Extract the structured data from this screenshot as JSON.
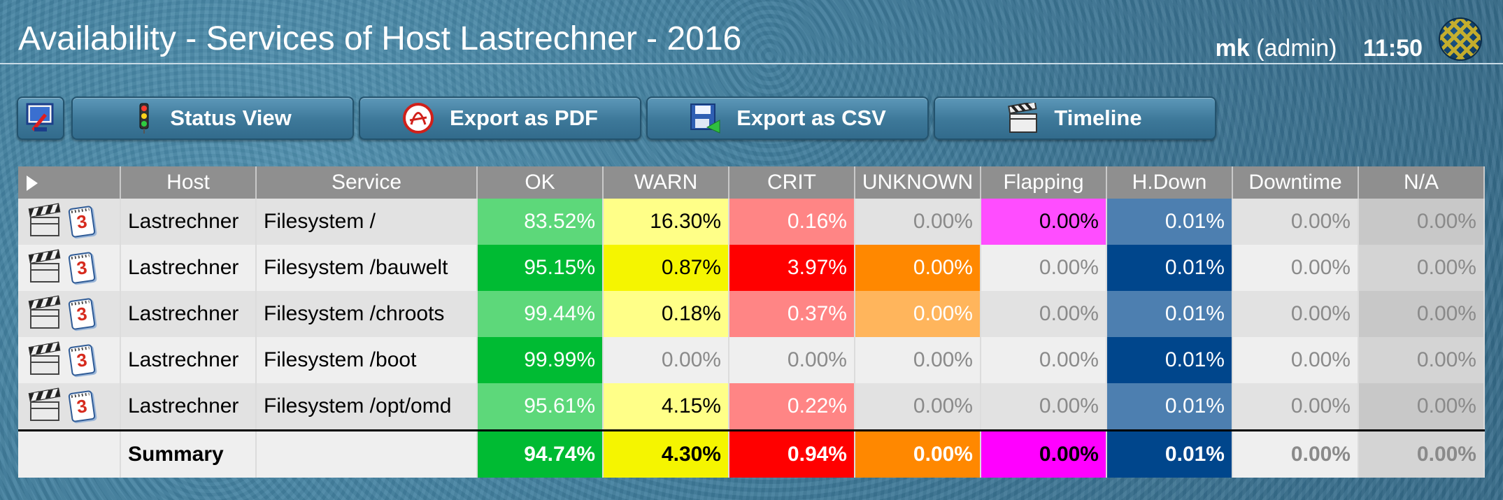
{
  "header": {
    "title": "Availability - Services of Host Lastrechner - 2016",
    "user": "mk",
    "role": "(admin)",
    "time": "11:50",
    "logo_icon": "globe-logo-icon"
  },
  "toolbar": {
    "home_icon": "monitor-home-icon",
    "buttons": [
      {
        "label": "Status View",
        "icon": "traffic-light-icon"
      },
      {
        "label": "Export as PDF",
        "icon": "pdf-icon"
      },
      {
        "label": "Export as CSV",
        "icon": "csv-save-icon"
      },
      {
        "label": "Timeline",
        "icon": "clapperboard-icon"
      }
    ]
  },
  "table": {
    "columns": [
      "Host",
      "Service",
      "OK",
      "WARN",
      "CRIT",
      "UNKNOWN",
      "Flapping",
      "H.Down",
      "Downtime",
      "N/A"
    ],
    "calendar_number": "3",
    "rows": [
      {
        "host": "Lastrechner",
        "service": "Filesystem /",
        "ok": "83.52%",
        "warn": "16.30%",
        "crit": "0.16%",
        "unknown": "0.00%",
        "flapping": "0.00%",
        "hdown": "0.01%",
        "downtime": "0.00%",
        "na": "0.00%"
      },
      {
        "host": "Lastrechner",
        "service": "Filesystem /bauwelt",
        "ok": "95.15%",
        "warn": "0.87%",
        "crit": "3.97%",
        "unknown": "0.00%",
        "flapping": "0.00%",
        "hdown": "0.01%",
        "downtime": "0.00%",
        "na": "0.00%"
      },
      {
        "host": "Lastrechner",
        "service": "Filesystem /chroots",
        "ok": "99.44%",
        "warn": "0.18%",
        "crit": "0.37%",
        "unknown": "0.00%",
        "flapping": "0.00%",
        "hdown": "0.01%",
        "downtime": "0.00%",
        "na": "0.00%"
      },
      {
        "host": "Lastrechner",
        "service": "Filesystem /boot",
        "ok": "99.99%",
        "warn": "0.00%",
        "crit": "0.00%",
        "unknown": "0.00%",
        "flapping": "0.00%",
        "hdown": "0.01%",
        "downtime": "0.00%",
        "na": "0.00%"
      },
      {
        "host": "Lastrechner",
        "service": "Filesystem /opt/omd",
        "ok": "95.61%",
        "warn": "4.15%",
        "crit": "0.22%",
        "unknown": "0.00%",
        "flapping": "0.00%",
        "hdown": "0.01%",
        "downtime": "0.00%",
        "na": "0.00%"
      }
    ],
    "summary": {
      "label": "Summary",
      "ok": "94.74%",
      "warn": "4.30%",
      "crit": "0.94%",
      "unknown": "0.00%",
      "flapping": "0.00%",
      "hdown": "0.01%",
      "downtime": "0.00%",
      "na": "0.00%"
    }
  },
  "colors": {
    "ok_light": "#5dd87a",
    "ok_strong": "#00bb33",
    "warn_light": "#ffff88",
    "warn_strong": "#f5f500",
    "crit_light": "#ff8585",
    "crit_strong": "#ff0000",
    "unknown_light": "#ffb55c",
    "unknown_strong": "#ff8800",
    "flapping_light": "#ff4dff",
    "flapping_strong": "#ff00ff",
    "hdown_light": "#4d7fb0",
    "hdown_strong": "#00468c",
    "empty_light": "#e2e2e2",
    "empty_strong": "#efefef",
    "na_light": "#c8c8c8",
    "na_strong": "#d4d4d4"
  }
}
